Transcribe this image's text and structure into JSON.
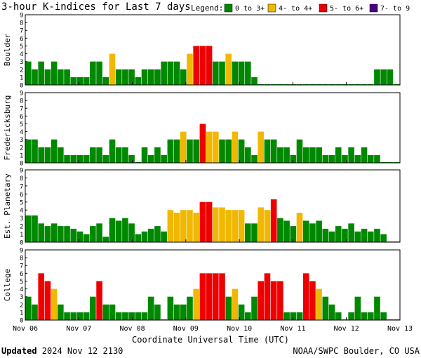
{
  "header": {
    "title": "3-hour K-indices for Last 7 days",
    "legend_label": "Legend:",
    "legend": [
      {
        "label": "0 to 3+",
        "color": "#008800"
      },
      {
        "label": "4- to 4+",
        "color": "#f0b800"
      },
      {
        "label": "5- to 6+",
        "color": "#ee0000"
      },
      {
        "label": "7- to 9",
        "color": "#4b0082"
      }
    ]
  },
  "x_axis": {
    "label": "Coordinate Universal Time (UTC)",
    "ticks": [
      "Nov 06",
      "Nov 07",
      "Nov 08",
      "Nov 09",
      "Nov 10",
      "Nov 11",
      "Nov 12",
      "Nov 13"
    ]
  },
  "footer": {
    "updated_label": "Updated",
    "updated_value": "2024 Nov 12 2130",
    "source": "NOAA/SWPC Boulder, CO USA"
  },
  "chart_data": [
    {
      "type": "bar",
      "ylabel": "Boulder",
      "ylim": [
        0,
        9
      ],
      "y_ticks": [
        "0",
        "1",
        "2",
        "3",
        "4",
        "5",
        "6",
        "7",
        "8",
        "9"
      ],
      "values": [
        3,
        2,
        3,
        2,
        3,
        2,
        2,
        1,
        1,
        1,
        3,
        3,
        1,
        4,
        2,
        2,
        2,
        1,
        2,
        2,
        2,
        3,
        3,
        3,
        2,
        4,
        5,
        5,
        5,
        3,
        3,
        4,
        3,
        3,
        3,
        1,
        0,
        0,
        0,
        0,
        0,
        0,
        0,
        0,
        0,
        0,
        0,
        0,
        0,
        0,
        0,
        0,
        0,
        0,
        2,
        2,
        2,
        0
      ]
    },
    {
      "type": "bar",
      "ylabel": "Fredericksburg",
      "ylim": [
        0,
        9
      ],
      "y_ticks": [
        "0",
        "1",
        "2",
        "3",
        "4",
        "5",
        "6",
        "7",
        "8",
        "9"
      ],
      "values": [
        3,
        3,
        2,
        2,
        3,
        2,
        1,
        1,
        1,
        1,
        2,
        2,
        1,
        3,
        2,
        2,
        1,
        0,
        2,
        1,
        2,
        1,
        3,
        3,
        4,
        3,
        3,
        5,
        4,
        4,
        3,
        3,
        4,
        3,
        2,
        1,
        4,
        3,
        3,
        2,
        2,
        1,
        3,
        2,
        2,
        2,
        1,
        1,
        2,
        1,
        2,
        1,
        2,
        1,
        1,
        0,
        0,
        0
      ]
    },
    {
      "type": "bar",
      "ylabel": "Est. Planetary",
      "ylim": [
        0,
        9
      ],
      "y_ticks": [
        "0",
        "1",
        "2",
        "3",
        "4",
        "5",
        "6",
        "7",
        "8",
        "9"
      ],
      "values": [
        3.33,
        3.33,
        2.33,
        2,
        2.33,
        2,
        2,
        1.67,
        1.33,
        1,
        2,
        2.33,
        0.67,
        3,
        2.67,
        3,
        2.33,
        1,
        1.33,
        1.67,
        2,
        1.33,
        4,
        3.67,
        4,
        4,
        3.67,
        5,
        5,
        4.33,
        4.33,
        4,
        4,
        4,
        2.33,
        2.33,
        4.33,
        4,
        5.33,
        3,
        2.67,
        2,
        3.67,
        2.67,
        2.33,
        2.67,
        1.67,
        1.33,
        2,
        1.67,
        2.33,
        1.33,
        1.67,
        1.33,
        1.67,
        1,
        0,
        0
      ]
    },
    {
      "type": "bar",
      "ylabel": "College",
      "ylim": [
        0,
        9
      ],
      "y_ticks": [
        "0",
        "1",
        "2",
        "3",
        "4",
        "5",
        "6",
        "7",
        "8",
        "9"
      ],
      "values": [
        3,
        2,
        6,
        5,
        4,
        2,
        1,
        1,
        1,
        1,
        3,
        5,
        2,
        2,
        1,
        1,
        1,
        1,
        1,
        3,
        2,
        0,
        3,
        2,
        2,
        3,
        4,
        6,
        6,
        6,
        6,
        3,
        4,
        2,
        1,
        3,
        5,
        6,
        5,
        5,
        1,
        1,
        1,
        6,
        5,
        4,
        3,
        2,
        1,
        0,
        1,
        3,
        1,
        1,
        3,
        1,
        0,
        0
      ]
    }
  ]
}
